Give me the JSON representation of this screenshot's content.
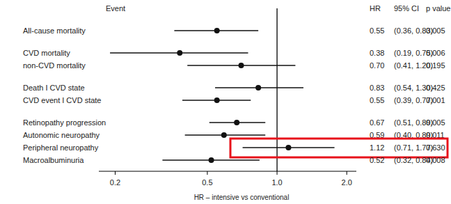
{
  "chart_data": {
    "type": "forest",
    "log": "x",
    "x_label": "HR – intensive vs conventional",
    "xlim": [
      0.17,
      2.2
    ],
    "xticks": [
      0.2,
      0.5,
      {
        "value": 1,
        "label": "1.0"
      },
      {
        "value": 2,
        "label": "2.0"
      }
    ],
    "reference": 1,
    "columns": [
      "Event",
      "HR",
      "95% CI",
      "p value"
    ],
    "groups": [
      {
        "rows": [
          {
            "event": "All-cause mortality",
            "hr": 0.55,
            "lo": 0.36,
            "hi": 0.83,
            "hr_label": "0.55",
            "ci_label": "(0.36, 0.83)",
            "p_label": "0.005"
          }
        ]
      },
      {
        "rows": [
          {
            "event": "CVD mortality",
            "hr": 0.38,
            "lo": 0.19,
            "hi": 0.75,
            "hr_label": "0.38",
            "ci_label": "(0.19, 0.75)",
            "p_label": "0.006"
          },
          {
            "event": "non-CVD mortality",
            "hr": 0.7,
            "lo": 0.41,
            "hi": 1.2,
            "hr_label": "0.70",
            "ci_label": "(0.41, 1.20)",
            "p_label": "0.195"
          }
        ]
      },
      {
        "rows": [
          {
            "event": "Death I CVD state",
            "hr": 0.83,
            "lo": 0.54,
            "hi": 1.3,
            "hr_label": "0.83",
            "ci_label": "(0.54, 1.30)",
            "p_label": "0.425"
          },
          {
            "event": "CVD event I CVD state",
            "hr": 0.55,
            "lo": 0.39,
            "hi": 0.77,
            "hr_label": "0.55",
            "ci_label": "(0.39, 0.77)",
            "p_label": "0.001"
          }
        ]
      },
      {
        "rows": [
          {
            "event": "Retinopathy progression",
            "hr": 0.67,
            "lo": 0.51,
            "hi": 0.89,
            "hr_label": "0.67",
            "ci_label": "(0.51, 0.89)",
            "p_label": "0.005"
          },
          {
            "event": "Autonomic neuropathy",
            "hr": 0.59,
            "lo": 0.4,
            "hi": 0.89,
            "hr_label": "0.59",
            "ci_label": "(0.40, 0.89)",
            "p_label": "0.011"
          },
          {
            "event": "Peripheral neuropathy",
            "hr": 1.12,
            "lo": 0.71,
            "hi": 1.77,
            "hr_label": "1.12",
            "ci_label": "(0.71, 1.77)",
            "p_label": "0.630",
            "highlight": true
          },
          {
            "event": "Macroalbuminuria",
            "hr": 0.52,
            "lo": 0.32,
            "hi": 0.84,
            "hr_label": "0.52",
            "ci_label": "(0.32, 0.84)",
            "p_label": "0.008"
          }
        ]
      }
    ]
  }
}
